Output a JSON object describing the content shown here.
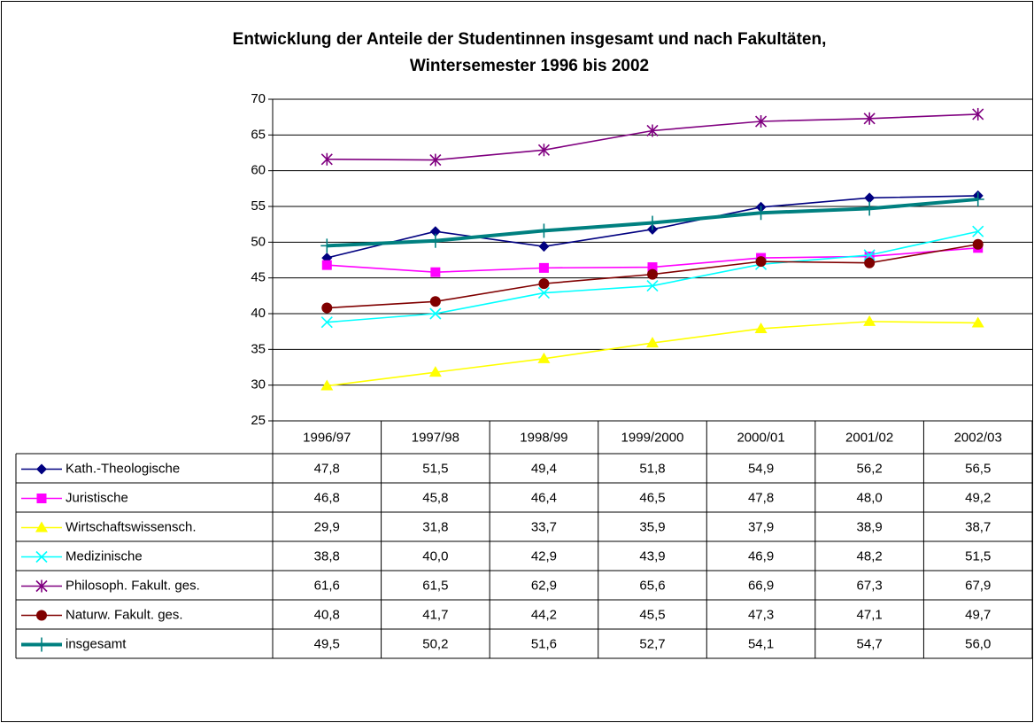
{
  "chart_data": {
    "type": "line",
    "title": [
      "Entwicklung der Anteile der Studentinnen insgesamt und nach  Fakultäten,",
      "Wintersemester 1996 bis 2002"
    ],
    "categories": [
      "1996/97",
      "1997/98",
      "1998/99",
      "1999/2000",
      "2000/01",
      "2001/02",
      "2002/03"
    ],
    "ylim": [
      25,
      70
    ],
    "yticks": [
      25,
      30,
      35,
      40,
      45,
      50,
      55,
      60,
      65,
      70
    ],
    "grid": true,
    "series": [
      {
        "name": "Kath.-Theologische",
        "color": "#000080",
        "marker": "diamond",
        "values": [
          47.8,
          51.5,
          49.4,
          51.8,
          54.9,
          56.2,
          56.5
        ],
        "value_labels": [
          "47,8",
          "51,5",
          "49,4",
          "51,8",
          "54,9",
          "56,2",
          "56,5"
        ]
      },
      {
        "name": "Juristische",
        "color": "#ff00ff",
        "marker": "square",
        "values": [
          46.8,
          45.8,
          46.4,
          46.5,
          47.8,
          48.0,
          49.2
        ],
        "value_labels": [
          "46,8",
          "45,8",
          "46,4",
          "46,5",
          "47,8",
          "48,0",
          "49,2"
        ]
      },
      {
        "name": "Wirtschaftswissensch.",
        "color": "#ffff00",
        "marker": "triangle",
        "values": [
          29.9,
          31.8,
          33.7,
          35.9,
          37.9,
          38.9,
          38.7
        ],
        "value_labels": [
          "29,9",
          "31,8",
          "33,7",
          "35,9",
          "37,9",
          "38,9",
          "38,7"
        ]
      },
      {
        "name": "Medizinische",
        "color": "#00ffff",
        "marker": "x",
        "values": [
          38.8,
          40.0,
          42.9,
          43.9,
          46.9,
          48.2,
          51.5
        ],
        "value_labels": [
          "38,8",
          "40,0",
          "42,9",
          "43,9",
          "46,9",
          "48,2",
          "51,5"
        ]
      },
      {
        "name": "Philosoph. Fakult. ges.",
        "color": "#800080",
        "marker": "star",
        "values": [
          61.6,
          61.5,
          62.9,
          65.6,
          66.9,
          67.3,
          67.9
        ],
        "value_labels": [
          "61,6",
          "61,5",
          "62,9",
          "65,6",
          "66,9",
          "67,3",
          "67,9"
        ]
      },
      {
        "name": "Naturw. Fakult. ges.",
        "color": "#800000",
        "marker": "circle",
        "values": [
          40.8,
          41.7,
          44.2,
          45.5,
          47.3,
          47.1,
          49.7
        ],
        "value_labels": [
          "40,8",
          "41,7",
          "44,2",
          "45,5",
          "47,3",
          "47,1",
          "49,7"
        ]
      },
      {
        "name": "insgesamt",
        "color": "#008080",
        "marker": "plus",
        "line_width": 4,
        "values": [
          49.5,
          50.2,
          51.6,
          52.7,
          54.1,
          54.7,
          56.0
        ],
        "value_labels": [
          "49,5",
          "50,2",
          "51,6",
          "52,7",
          "54,1",
          "54,7",
          "56,0"
        ]
      }
    ]
  }
}
